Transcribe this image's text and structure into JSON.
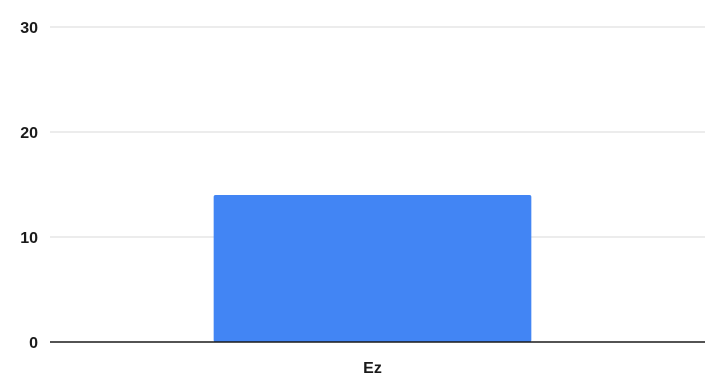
{
  "chart_data": {
    "type": "bar",
    "categories": [
      "Ez"
    ],
    "values": [
      14
    ],
    "ylim": [
      0,
      30
    ],
    "yticks": [
      0,
      10,
      20,
      30
    ],
    "grid": true,
    "colors": {
      "bar": "#4285f4",
      "grid": "#d9d9d9",
      "axis": "#1a1a1a"
    }
  }
}
